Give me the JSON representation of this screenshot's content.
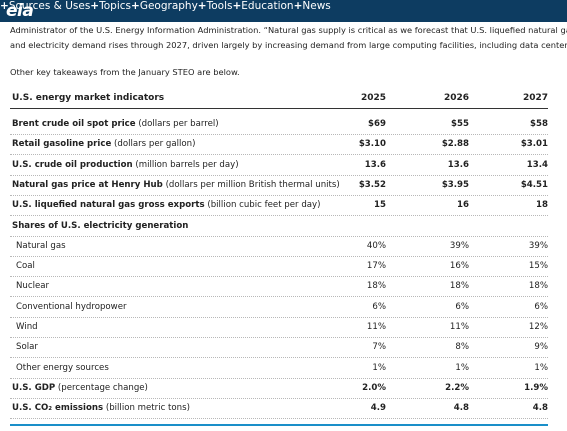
{
  "nav": {
    "logo": "eia",
    "items": [
      "Sources & Uses",
      "Topics",
      "Geography",
      "Tools",
      "Education",
      "News"
    ]
  },
  "intro": {
    "lines": [
      "Administrator of the U.S. Energy Information Administration. “Natural gas supply is critical as we forecast that U.S. liquefied natural gas exports expan",
      "and electricity demand rises through 2027, driven largely by increasing demand from large computing facilities, including data centers.”"
    ],
    "takeaway": "Other key takeaways from the January STEO are below."
  },
  "table": {
    "header": [
      "U.S. energy market indicators",
      "2025",
      "2026",
      "2027"
    ],
    "rows": [
      {
        "name": "Brent crude oil spot price",
        "unit": "(dollars per barrel)",
        "values": [
          "$69",
          "$55",
          "$58"
        ]
      },
      {
        "name": "Retail gasoline price",
        "unit": "(dollars per gallon)",
        "values": [
          "$3.10",
          "$2.88",
          "$3.01"
        ]
      },
      {
        "name": "U.S. crude oil production",
        "unit": "(million barrels per day)",
        "values": [
          "13.6",
          "13.6",
          "13.4"
        ]
      },
      {
        "name": "Natural gas price at Henry Hub",
        "unit": "(dollars per million British thermal units)",
        "values": [
          "$3.52",
          "$3.95",
          "$4.51"
        ]
      },
      {
        "name": "U.S. liquefied natural gas gross exports",
        "unit": "(billion cubic feet per day)",
        "values": [
          "15",
          "16",
          "18"
        ]
      },
      {
        "name": "Shares of U.S. electricity generation"
      },
      {
        "sub": "Natural gas",
        "values": [
          "40%",
          "39%",
          "39%"
        ]
      },
      {
        "sub": "Coal",
        "values": [
          "17%",
          "16%",
          "15%"
        ]
      },
      {
        "sub": "Nuclear",
        "values": [
          "18%",
          "18%",
          "18%"
        ]
      },
      {
        "sub": "Conventional hydropower",
        "values": [
          "6%",
          "6%",
          "6%"
        ]
      },
      {
        "sub": "Wind",
        "values": [
          "11%",
          "11%",
          "12%"
        ]
      },
      {
        "sub": "Solar",
        "values": [
          "7%",
          "8%",
          "9%"
        ]
      },
      {
        "sub": "Other energy sources",
        "values": [
          "1%",
          "1%",
          "1%"
        ]
      },
      {
        "name": "U.S. GDP",
        "unit": "(percentage change)",
        "values": [
          "2.0%",
          "2.2%",
          "1.9%"
        ]
      },
      {
        "name": "U.S. CO₂ emissions",
        "unit": "(billion metric tons)",
        "values": [
          "4.9",
          "4.8",
          "4.8"
        ]
      }
    ]
  }
}
